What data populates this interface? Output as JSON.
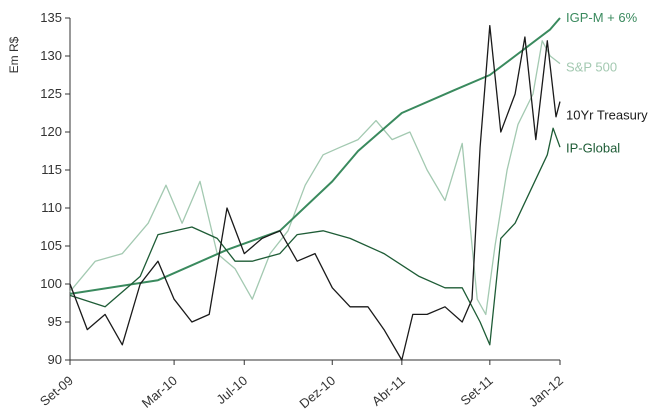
{
  "chart_data": {
    "type": "line",
    "title": "",
    "ylabel": "Em R$",
    "xlabel": "",
    "ylim": [
      90,
      135
    ],
    "yticks": [
      90,
      95,
      100,
      105,
      110,
      115,
      120,
      125,
      130,
      135
    ],
    "xlim": [
      "2009-09-01",
      "2012-01-01"
    ],
    "xticks": [
      "Set-09",
      "Mar-10",
      "Jul-10",
      "Dez-10",
      "Abr-11",
      "Set-11",
      "Jan-12"
    ],
    "xtick_dates": [
      "2009-09-01",
      "2010-03-01",
      "2010-07-01",
      "2010-12-01",
      "2011-04-01",
      "2011-09-01",
      "2012-01-01"
    ],
    "grid": false,
    "legend": "inline labels at line ends (right)",
    "series": [
      {
        "name": "IGP-M + 6%",
        "color": "#3a8a5e",
        "points": [
          [
            "2009-09-01",
            98.7
          ],
          [
            "2010-02-01",
            100.5
          ],
          [
            "2010-06-01",
            104.5
          ],
          [
            "2010-09-01",
            107.0
          ],
          [
            "2010-12-01",
            113.5
          ],
          [
            "2011-01-15",
            117.5
          ],
          [
            "2011-04-01",
            122.5
          ],
          [
            "2011-07-01",
            125.5
          ],
          [
            "2011-09-01",
            127.5
          ],
          [
            "2011-10-15",
            130.0
          ],
          [
            "2011-12-15",
            133.5
          ],
          [
            "2012-01-01",
            135.0
          ]
        ]
      },
      {
        "name": "S&P 500",
        "color": "#a3c9b1",
        "points": [
          [
            "2009-09-01",
            99.0
          ],
          [
            "2009-10-15",
            103.0
          ],
          [
            "2009-12-01",
            104.0
          ],
          [
            "2010-01-15",
            108.0
          ],
          [
            "2010-02-15",
            113.0
          ],
          [
            "2010-03-15",
            108.0
          ],
          [
            "2010-04-15",
            113.5
          ],
          [
            "2010-05-15",
            104.0
          ],
          [
            "2010-06-15",
            102.0
          ],
          [
            "2010-07-15",
            98.0
          ],
          [
            "2010-08-15",
            104.0
          ],
          [
            "2010-09-15",
            107.0
          ],
          [
            "2010-10-15",
            113.0
          ],
          [
            "2010-11-15",
            117.0
          ],
          [
            "2010-12-15",
            118.0
          ],
          [
            "2011-01-15",
            119.0
          ],
          [
            "2011-02-15",
            121.5
          ],
          [
            "2011-03-15",
            119.0
          ],
          [
            "2011-04-15",
            120.0
          ],
          [
            "2011-05-15",
            115.0
          ],
          [
            "2011-06-15",
            111.0
          ],
          [
            "2011-07-15",
            118.5
          ],
          [
            "2011-08-10",
            98.0
          ],
          [
            "2011-08-25",
            96.0
          ],
          [
            "2011-09-10",
            105.0
          ],
          [
            "2011-10-01",
            115.0
          ],
          [
            "2011-10-20",
            121.0
          ],
          [
            "2011-11-15",
            125.0
          ],
          [
            "2011-12-01",
            132.0
          ],
          [
            "2011-12-15",
            130.0
          ],
          [
            "2012-01-01",
            129.0
          ]
        ]
      },
      {
        "name": "10Yr Treasury",
        "color": "#1a1a1a",
        "points": [
          [
            "2009-09-01",
            100.0
          ],
          [
            "2009-10-01",
            94.0
          ],
          [
            "2009-11-01",
            96.0
          ],
          [
            "2009-12-01",
            92.0
          ],
          [
            "2010-01-01",
            100.0
          ],
          [
            "2010-02-01",
            103.0
          ],
          [
            "2010-03-01",
            98.0
          ],
          [
            "2010-04-01",
            95.0
          ],
          [
            "2010-05-01",
            96.0
          ],
          [
            "2010-06-01",
            110.0
          ],
          [
            "2010-07-01",
            104.0
          ],
          [
            "2010-08-01",
            106.0
          ],
          [
            "2010-09-01",
            107.0
          ],
          [
            "2010-10-01",
            103.0
          ],
          [
            "2010-11-01",
            104.0
          ],
          [
            "2010-12-01",
            99.5
          ],
          [
            "2011-01-01",
            97.0
          ],
          [
            "2011-02-01",
            97.0
          ],
          [
            "2011-03-01",
            94.0
          ],
          [
            "2011-04-01",
            90.0
          ],
          [
            "2011-04-20",
            96.0
          ],
          [
            "2011-05-15",
            96.0
          ],
          [
            "2011-06-15",
            97.0
          ],
          [
            "2011-07-15",
            95.0
          ],
          [
            "2011-08-01",
            98.0
          ],
          [
            "2011-08-15",
            118.0
          ],
          [
            "2011-09-01",
            134.0
          ],
          [
            "2011-09-20",
            120.0
          ],
          [
            "2011-10-15",
            125.0
          ],
          [
            "2011-11-01",
            132.5
          ],
          [
            "2011-11-20",
            119.0
          ],
          [
            "2011-12-10",
            132.0
          ],
          [
            "2011-12-25",
            122.0
          ],
          [
            "2012-01-01",
            124.0
          ]
        ]
      },
      {
        "name": "IP-Global",
        "color": "#1e5c36",
        "points": [
          [
            "2009-09-01",
            98.5
          ],
          [
            "2009-11-01",
            97.0
          ],
          [
            "2010-01-01",
            101.0
          ],
          [
            "2010-02-01",
            106.5
          ],
          [
            "2010-04-01",
            107.5
          ],
          [
            "2010-05-15",
            106.0
          ],
          [
            "2010-06-15",
            103.0
          ],
          [
            "2010-07-15",
            103.0
          ],
          [
            "2010-09-01",
            104.0
          ],
          [
            "2010-10-01",
            106.5
          ],
          [
            "2010-11-15",
            107.0
          ],
          [
            "2011-01-01",
            106.0
          ],
          [
            "2011-03-01",
            104.0
          ],
          [
            "2011-05-01",
            101.0
          ],
          [
            "2011-06-15",
            99.5
          ],
          [
            "2011-07-15",
            99.5
          ],
          [
            "2011-08-15",
            95.0
          ],
          [
            "2011-09-01",
            92.0
          ],
          [
            "2011-09-20",
            106.0
          ],
          [
            "2011-10-15",
            108.0
          ],
          [
            "2011-11-15",
            113.0
          ],
          [
            "2011-12-10",
            117.0
          ],
          [
            "2011-12-20",
            120.5
          ],
          [
            "2012-01-01",
            118.0
          ]
        ]
      }
    ]
  }
}
